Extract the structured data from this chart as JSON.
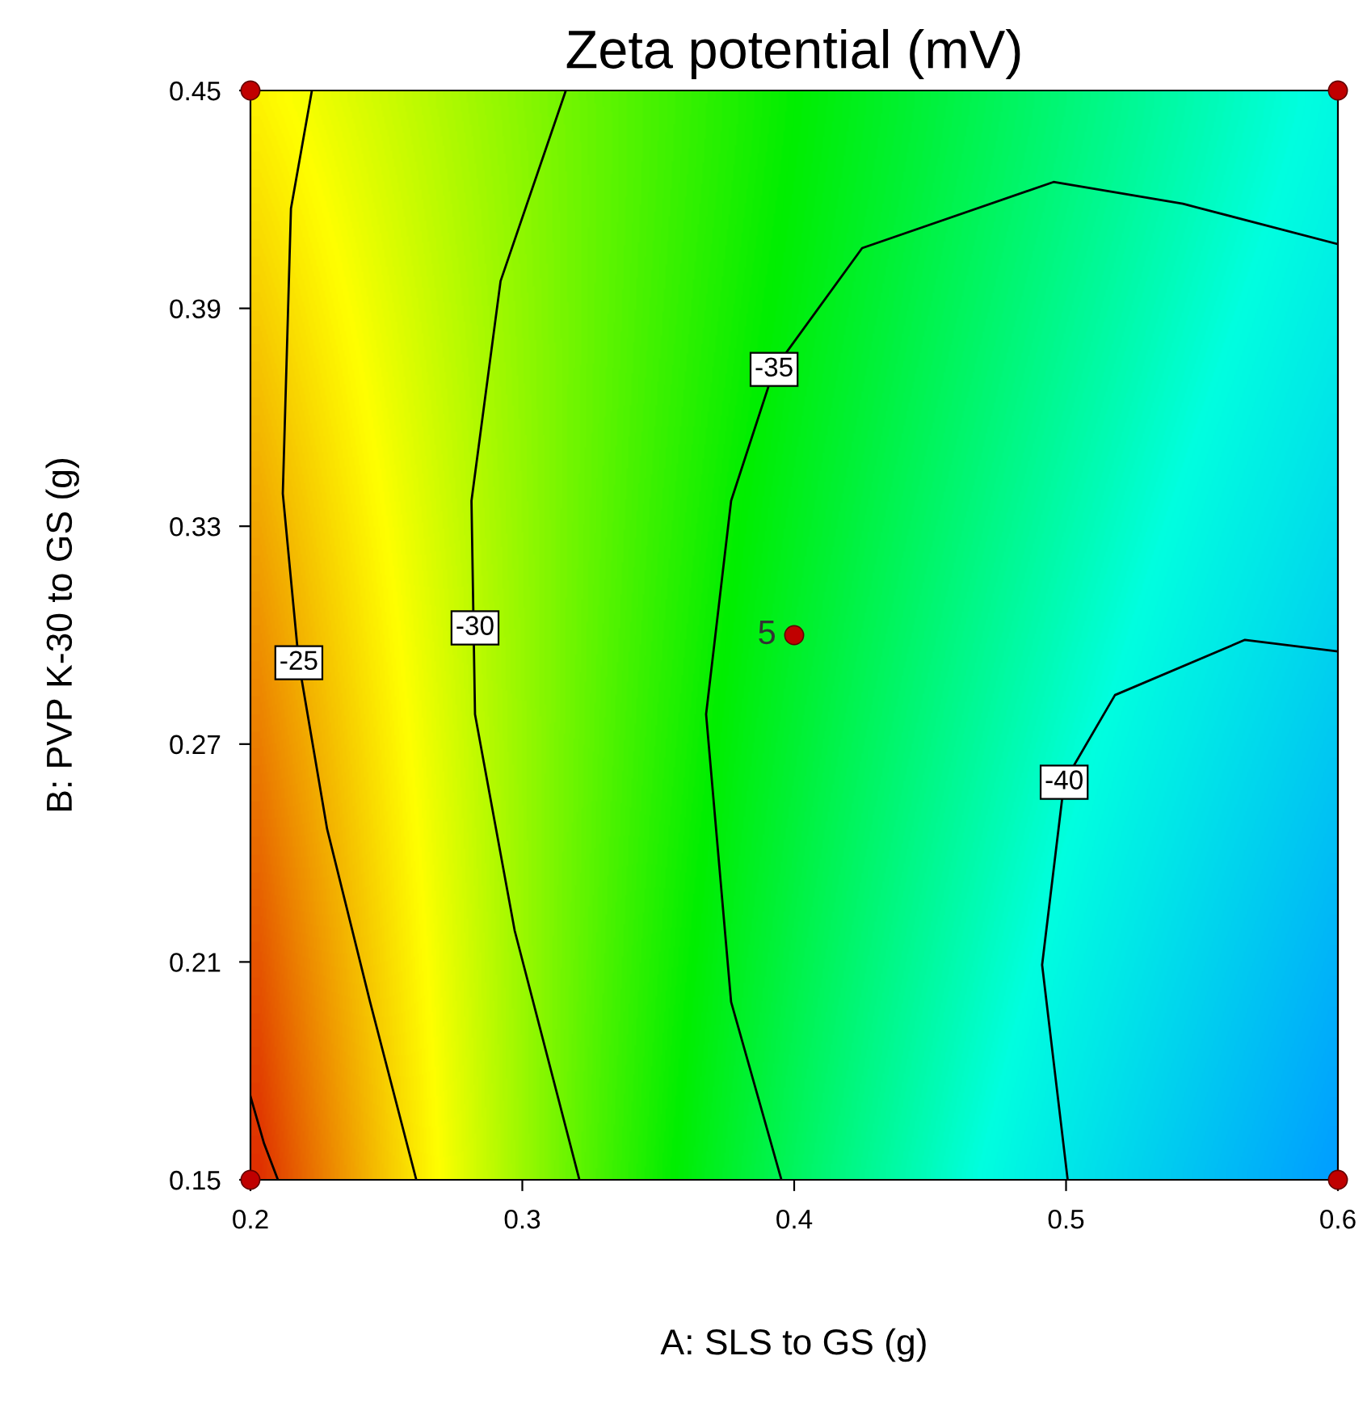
{
  "chart_data": {
    "type": "line",
    "title": "Zeta potential (mV)",
    "xlabel": "A: SLS to GS (g)",
    "ylabel": "B: PVP K-30 to GS (g)",
    "xlim": [
      0.2,
      0.6
    ],
    "xticks": [
      0.2,
      0.3,
      0.4,
      0.5,
      0.6
    ],
    "ylim": [
      0.15,
      0.45
    ],
    "yticks": [
      0.15,
      0.21,
      0.27,
      0.33,
      0.39,
      0.45
    ],
    "grid": false,
    "legend": false,
    "series": [
      {
        "color": "#000000",
        "x": [
          0.2,
          0.205,
          0.2101
        ],
        "values": [
          0.173,
          0.16,
          0.15
        ]
      },
      {
        "color": "#000000",
        "x": [
          0.2226,
          0.2149,
          0.2119,
          0.2178,
          0.2282,
          0.244,
          0.261
        ],
        "values": [
          0.45,
          0.4175,
          0.339,
          0.2924,
          0.2466,
          0.199,
          0.15
        ]
      },
      {
        "color": "#000000",
        "x": [
          0.316,
          0.292,
          0.2813,
          0.2826,
          0.2972,
          0.321
        ],
        "values": [
          0.45,
          0.3975,
          0.337,
          0.2782,
          0.2186,
          0.15
        ]
      },
      {
        "color": "#000000",
        "x": [
          0.3953,
          0.3768,
          0.3676,
          0.3768,
          0.3926,
          0.425,
          0.4954,
          0.543,
          0.6
        ],
        "values": [
          0.15,
          0.199,
          0.2782,
          0.337,
          0.3732,
          0.4066,
          0.4248,
          0.4188,
          0.4077
        ]
      },
      {
        "color": "#000000",
        "x": [
          0.5006,
          0.4912,
          0.4993,
          0.518,
          0.5658,
          0.6
        ],
        "values": [
          0.15,
          0.2092,
          0.2595,
          0.2835,
          0.2987,
          0.2955
        ]
      },
      {
        "type": "scatter",
        "color": "#c00000",
        "x": [
          0.2,
          0.6,
          0.2,
          0.6,
          0.4
        ],
        "values": [
          0.45,
          0.45,
          0.15,
          0.15,
          0.3
        ]
      }
    ],
    "annotations": [
      {
        "text": "-25",
        "x": 0.2178,
        "y": 0.2924
      },
      {
        "text": "-30",
        "x": 0.2826,
        "y": 0.302
      },
      {
        "text": "-35",
        "x": 0.3926,
        "y": 0.3732
      },
      {
        "text": "-40",
        "x": 0.4993,
        "y": 0.2595
      },
      {
        "text": "5",
        "x": 0.4,
        "y": 0.3
      }
    ]
  }
}
